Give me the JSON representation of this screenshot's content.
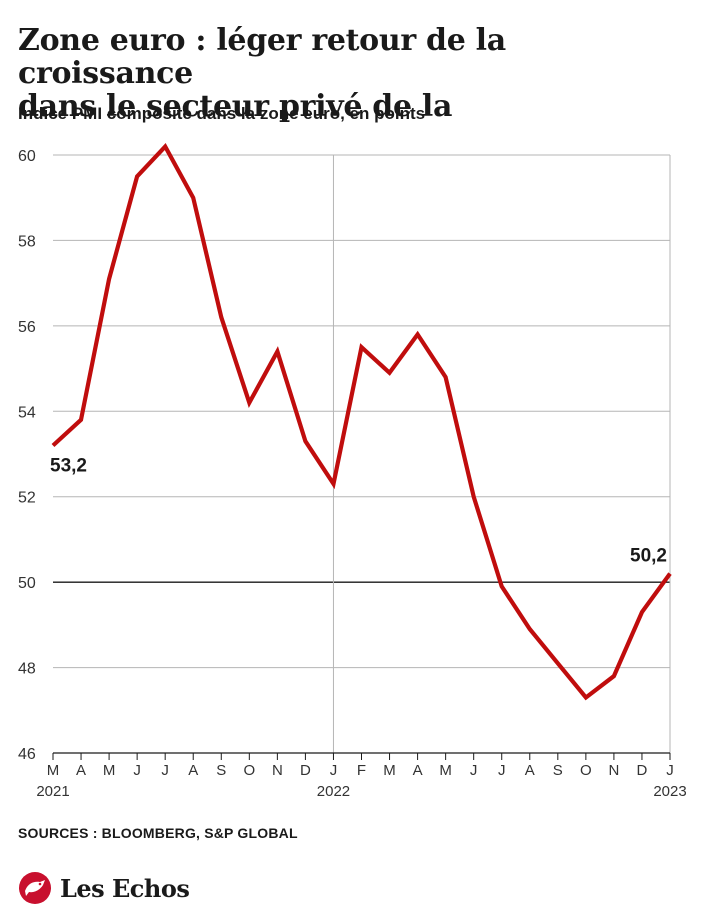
{
  "title_lines": [
    "Zone euro : léger retour de la croissance",
    "dans le secteur privé de la"
  ],
  "subtitle": "Indice PMI composite dans la zone euro, en points",
  "sources": "SOURCES : BLOOMBERG, S&P GLOBAL",
  "brand": "Les Echos",
  "colors": {
    "line": "#c00d0d",
    "grid": "#b5b5b5",
    "text": "#1a1a1a",
    "brand_red": "#c8102e"
  },
  "chart_data": {
    "type": "line",
    "title": "Zone euro : léger retour de la croissance dans le secteur privé de la",
    "ylabel": "",
    "xlabel": "",
    "ylim": [
      46,
      60
    ],
    "yticks": [
      46,
      48,
      50,
      52,
      54,
      56,
      58,
      60
    ],
    "reference_line": 50,
    "grid": true,
    "categories": [
      "M",
      "A",
      "M",
      "J",
      "J",
      "A",
      "S",
      "O",
      "N",
      "D",
      "J",
      "F",
      "M",
      "A",
      "M",
      "J",
      "J",
      "A",
      "S",
      "O",
      "N",
      "D",
      "J"
    ],
    "year_labels": [
      {
        "index": 0,
        "label": "2021"
      },
      {
        "index": 10,
        "label": "2022"
      },
      {
        "index": 22,
        "label": "2023"
      }
    ],
    "series": [
      {
        "values": [
          53.2,
          53.8,
          57.1,
          59.5,
          60.2,
          59.0,
          56.2,
          54.2,
          55.4,
          53.3,
          52.3,
          55.5,
          54.9,
          55.8,
          54.8,
          52.0,
          49.9,
          48.9,
          48.1,
          47.3,
          47.8,
          49.3,
          50.2
        ]
      }
    ],
    "annotations": [
      {
        "index": 0,
        "text": "53,2"
      },
      {
        "index": 22,
        "text": "50,2"
      }
    ]
  }
}
